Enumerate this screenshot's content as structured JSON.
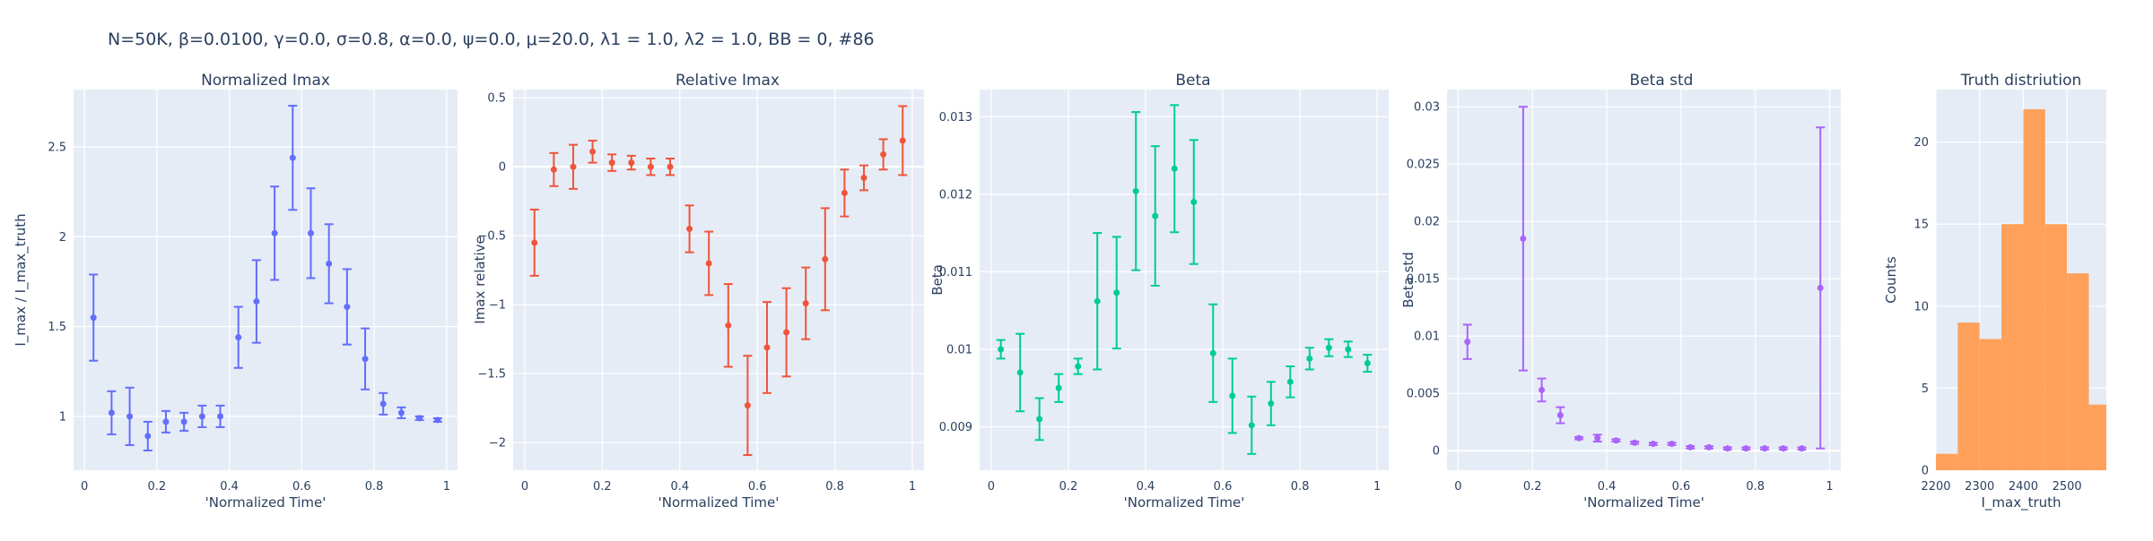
{
  "figure_title": "N=50K, β=0.0100, γ=0.0, σ=0.8,  α=0.0, ψ=0.0, μ=20.0, λ1 = 1.0, λ2 = 1.0, BB = 0, #86",
  "chart_data": [
    {
      "type": "scatter",
      "title": "Normalized Imax",
      "xlabel": "'Normalized Time'",
      "ylabel": "I_max / I_max_truth",
      "color": "#636efa",
      "xlim": [
        -0.03,
        1.03
      ],
      "ylim": [
        0.7,
        2.82
      ],
      "xticks": [
        0,
        0.2,
        0.4,
        0.6,
        0.8,
        1
      ],
      "xtick_labels": [
        "0",
        "0.2",
        "0.4",
        "0.6",
        "0.8",
        "1"
      ],
      "yticks": [
        1,
        1.5,
        2,
        2.5
      ],
      "ytick_labels": [
        "1",
        "1.5",
        "2",
        "2.5"
      ],
      "x": [
        0.025,
        0.075,
        0.125,
        0.175,
        0.225,
        0.275,
        0.325,
        0.375,
        0.425,
        0.475,
        0.525,
        0.575,
        0.625,
        0.675,
        0.725,
        0.775,
        0.825,
        0.875,
        0.925,
        0.975
      ],
      "y": [
        1.55,
        1.02,
        1.0,
        0.89,
        0.97,
        0.97,
        1.0,
        1.0,
        1.44,
        1.64,
        2.02,
        2.44,
        2.02,
        1.85,
        1.61,
        1.32,
        1.07,
        1.02,
        0.99,
        0.98
      ],
      "err": [
        0.24,
        0.12,
        0.16,
        0.08,
        0.06,
        0.05,
        0.06,
        0.06,
        0.17,
        0.23,
        0.26,
        0.29,
        0.25,
        0.22,
        0.21,
        0.17,
        0.06,
        0.03,
        0.01,
        0.01
      ]
    },
    {
      "type": "scatter",
      "title": "Relative Imax",
      "xlabel": "'Normalized Time'",
      "ylabel": "Imax relative",
      "color": "#ef553b",
      "xlim": [
        -0.03,
        1.03
      ],
      "ylim": [
        -2.2,
        0.56
      ],
      "xticks": [
        0,
        0.2,
        0.4,
        0.6,
        0.8,
        1
      ],
      "xtick_labels": [
        "0",
        "0.2",
        "0.4",
        "0.6",
        "0.8",
        "1"
      ],
      "yticks": [
        -2,
        -1.5,
        -1,
        -0.5,
        0,
        0.5
      ],
      "ytick_labels": [
        "−2",
        "−1.5",
        "−1",
        "−0.5",
        "0",
        "0.5"
      ],
      "x": [
        0.025,
        0.075,
        0.125,
        0.175,
        0.225,
        0.275,
        0.325,
        0.375,
        0.425,
        0.475,
        0.525,
        0.575,
        0.625,
        0.675,
        0.725,
        0.775,
        0.825,
        0.875,
        0.925,
        0.975
      ],
      "y": [
        -0.55,
        -0.02,
        0.0,
        0.11,
        0.03,
        0.03,
        0.0,
        0.0,
        -0.45,
        -0.7,
        -1.15,
        -1.73,
        -1.31,
        -1.2,
        -0.99,
        -0.67,
        -0.19,
        -0.08,
        0.09,
        0.19
      ],
      "err": [
        0.24,
        0.12,
        0.16,
        0.08,
        0.06,
        0.05,
        0.06,
        0.06,
        0.17,
        0.23,
        0.3,
        0.36,
        0.33,
        0.32,
        0.26,
        0.37,
        0.17,
        0.09,
        0.11,
        0.25
      ]
    },
    {
      "type": "scatter",
      "title": "Beta",
      "xlabel": "'Normalized Time'",
      "ylabel": "Beta",
      "color": "#00cc96",
      "xlim": [
        -0.03,
        1.03
      ],
      "ylim": [
        0.00844,
        0.01335
      ],
      "xticks": [
        0,
        0.2,
        0.4,
        0.6,
        0.8,
        1
      ],
      "xtick_labels": [
        "0",
        "0.2",
        "0.4",
        "0.6",
        "0.8",
        "1"
      ],
      "yticks": [
        0.009,
        0.01,
        0.011,
        0.012,
        0.013
      ],
      "ytick_labels": [
        "0.009",
        "0.01",
        "0.011",
        "0.012",
        "0.013"
      ],
      "x": [
        0.025,
        0.075,
        0.125,
        0.175,
        0.225,
        0.275,
        0.325,
        0.375,
        0.425,
        0.475,
        0.525,
        0.575,
        0.625,
        0.675,
        0.725,
        0.775,
        0.825,
        0.875,
        0.925,
        0.975
      ],
      "y": [
        0.01,
        0.0097,
        0.0091,
        0.0095,
        0.00978,
        0.01062,
        0.01073,
        0.01204,
        0.01172,
        0.01233,
        0.0119,
        0.00995,
        0.0094,
        0.00902,
        0.0093,
        0.00958,
        0.00988,
        0.01002,
        0.01,
        0.00982
      ],
      "err": [
        0.00012,
        0.0005,
        0.00027,
        0.00018,
        0.0001,
        0.00088,
        0.00072,
        0.00102,
        0.0009,
        0.00082,
        0.0008,
        0.00063,
        0.00048,
        0.00037,
        0.00028,
        0.0002,
        0.00014,
        0.00011,
        0.0001,
        0.00011
      ]
    },
    {
      "type": "scatter",
      "title": "Beta std",
      "xlabel": "'Normalized Time'",
      "ylabel": "Beta std",
      "color": "#ab63fa",
      "xlim": [
        -0.03,
        1.03
      ],
      "ylim": [
        -0.0017,
        0.0315
      ],
      "xticks": [
        0,
        0.2,
        0.4,
        0.6,
        0.8,
        1
      ],
      "xtick_labels": [
        "0",
        "0.2",
        "0.4",
        "0.6",
        "0.8",
        "1"
      ],
      "yticks": [
        0,
        0.005,
        0.01,
        0.015,
        0.02,
        0.025,
        0.03
      ],
      "ytick_labels": [
        "0",
        "0.005",
        "0.01",
        "0.015",
        "0.02",
        "0.025",
        "0.03"
      ],
      "x": [
        0.025,
        0.175,
        0.225,
        0.275,
        0.325,
        0.375,
        0.425,
        0.475,
        0.525,
        0.575,
        0.625,
        0.675,
        0.725,
        0.775,
        0.825,
        0.875,
        0.925,
        0.975
      ],
      "y": [
        0.0095,
        0.0185,
        0.0053,
        0.0031,
        0.0011,
        0.0011,
        0.0009,
        0.0007,
        0.0006,
        0.0006,
        0.0003,
        0.0003,
        0.0002,
        0.0002,
        0.0002,
        0.0002,
        0.0002,
        0.0142
      ],
      "err": [
        0.0015,
        0.0115,
        0.001,
        0.0007,
        0.0001,
        0.0003,
        0.0001,
        0.0001,
        0.0001,
        0.0001,
        0.0001,
        0.0001,
        0.0001,
        0.0001,
        0.0001,
        0.0001,
        0.0001,
        0.014
      ]
    },
    {
      "type": "bar",
      "subtype": "histogram",
      "title": "Truth distriution",
      "xlabel": "I_max_truth",
      "ylabel": "Counts",
      "color": "#ffa15a",
      "xlim": [
        2200,
        2590
      ],
      "ylim": [
        0,
        23.2
      ],
      "xticks": [
        2200,
        2300,
        2400,
        2500
      ],
      "xtick_labels": [
        "2200",
        "2300",
        "2400",
        "2500"
      ],
      "yticks": [
        0,
        5,
        10,
        15,
        20
      ],
      "ytick_labels": [
        "0",
        "5",
        "10",
        "15",
        "20"
      ],
      "bin_edges": [
        2200,
        2250,
        2300,
        2350,
        2400,
        2450,
        2500,
        2550,
        2600
      ],
      "values": [
        1,
        9,
        8,
        15,
        22,
        15,
        12,
        4
      ]
    }
  ]
}
